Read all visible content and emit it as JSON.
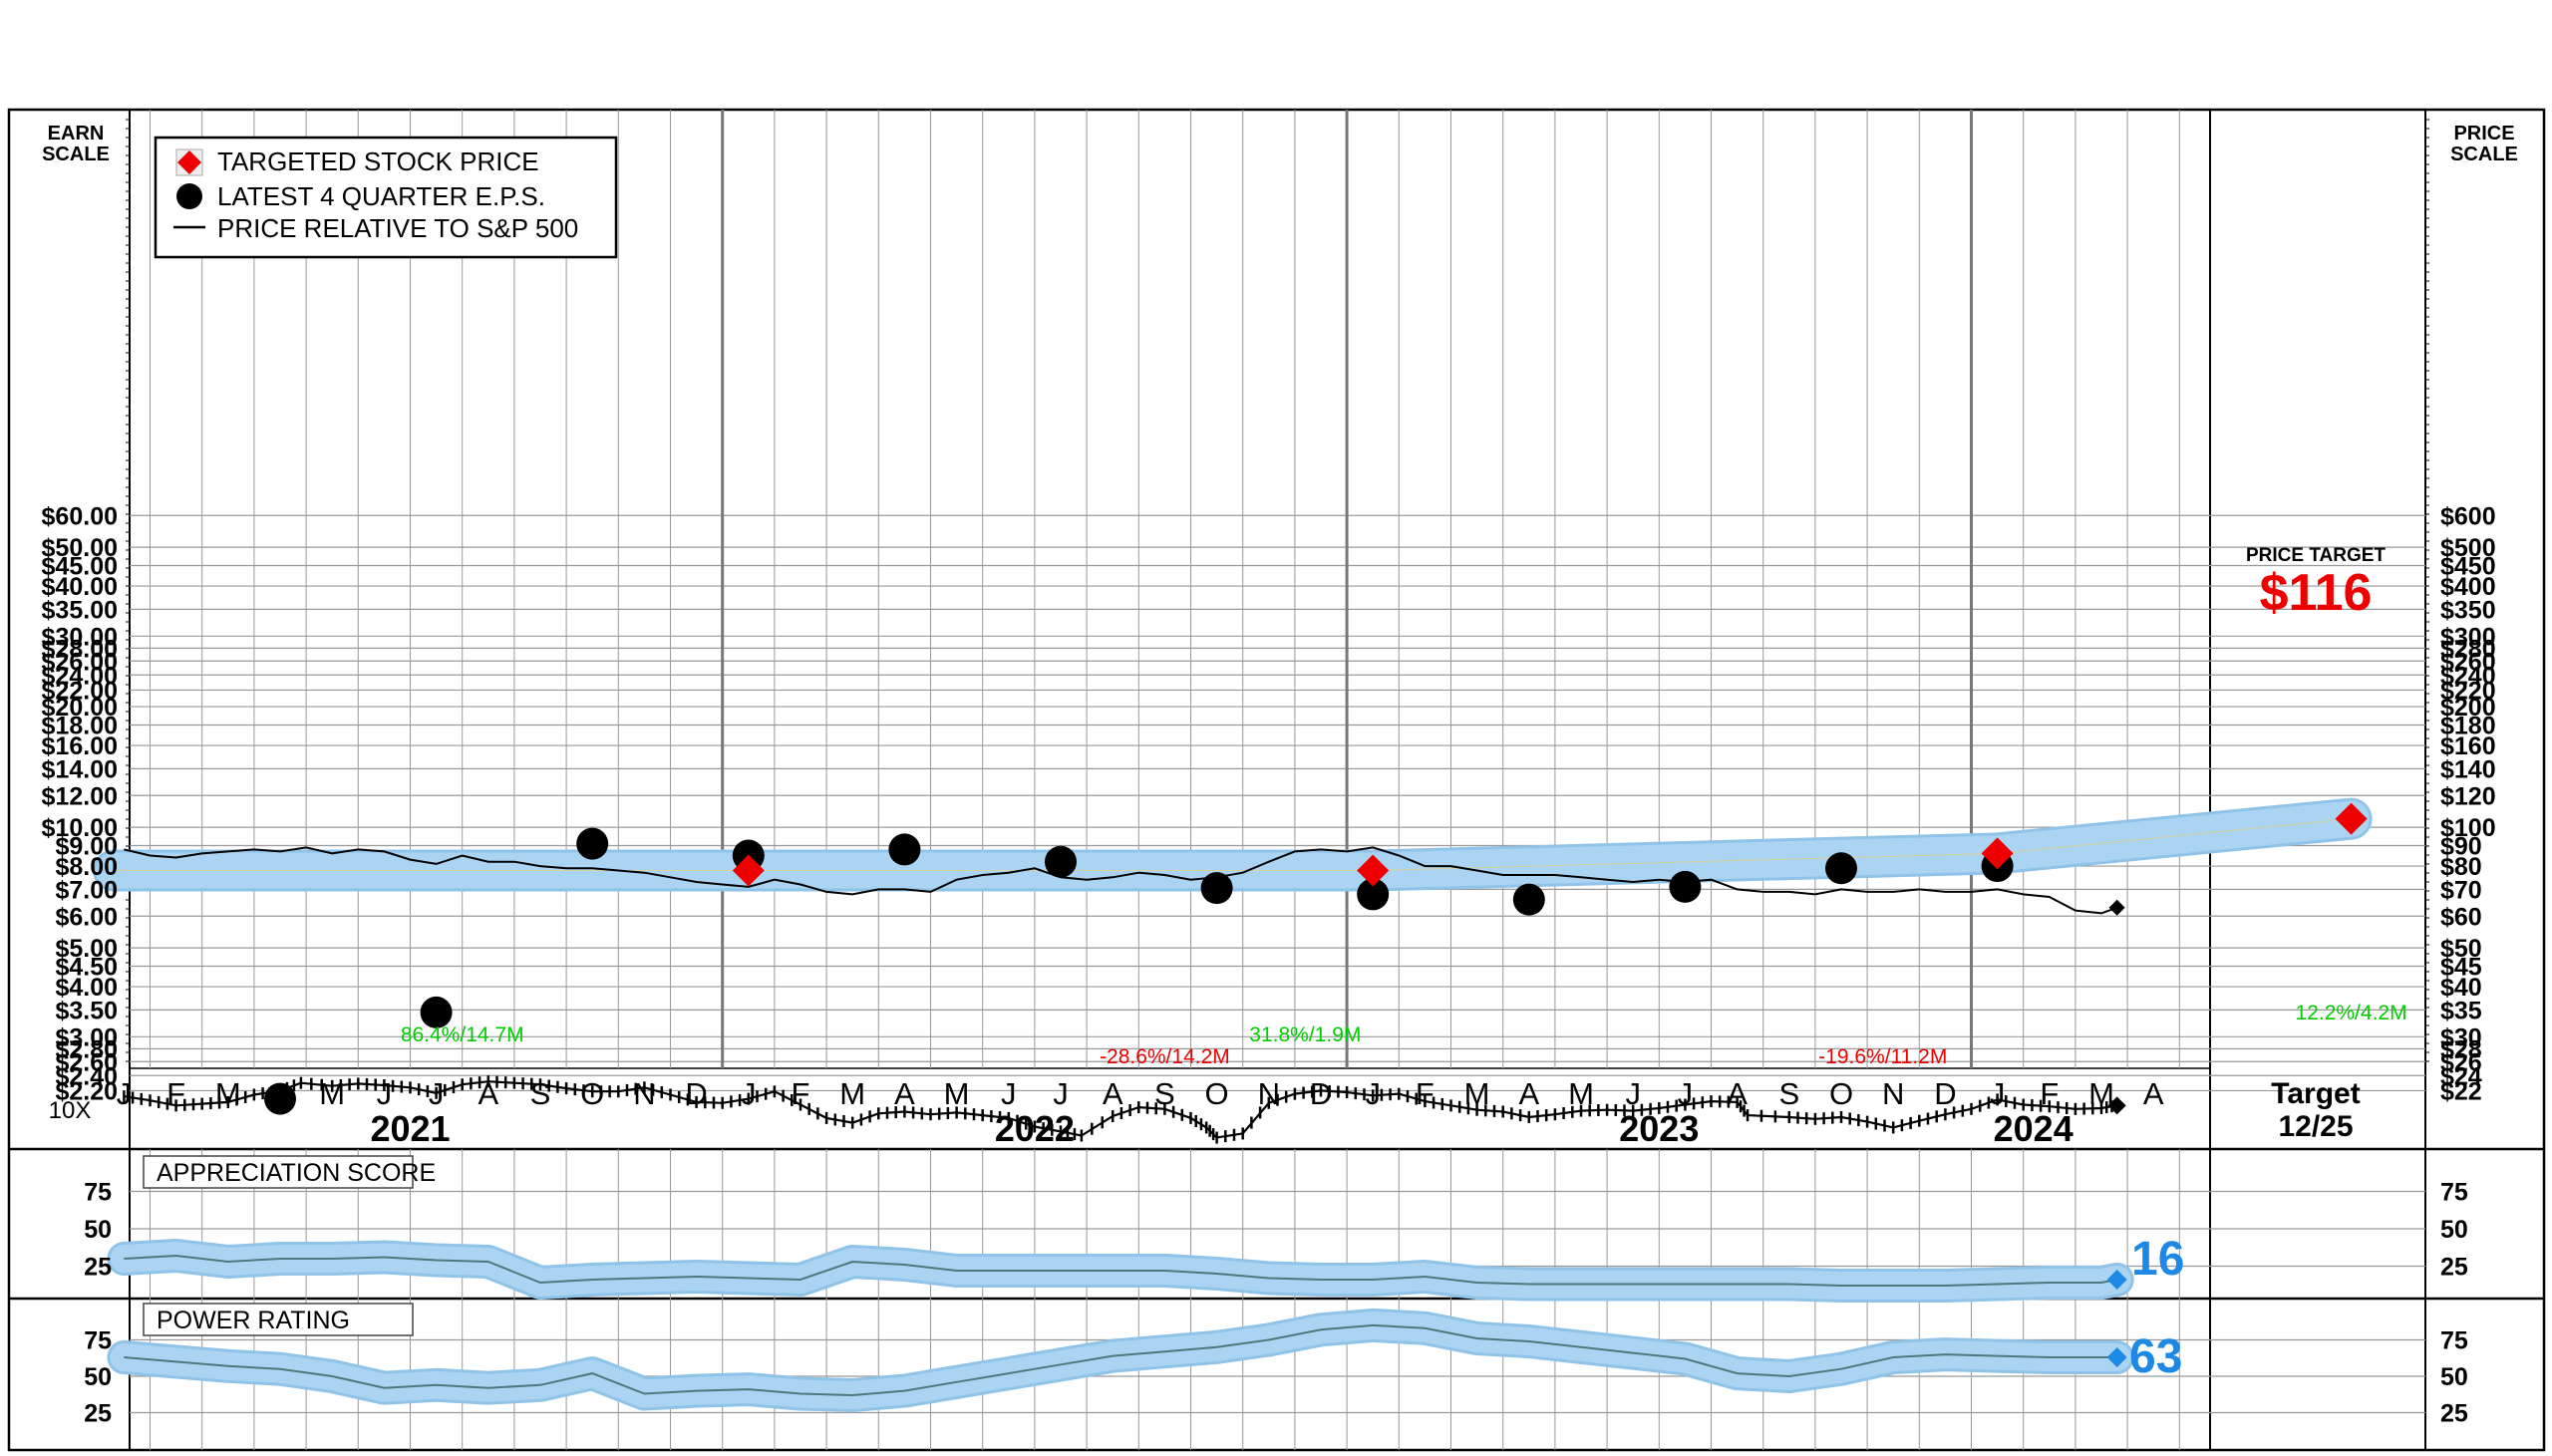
{
  "labels": {
    "earn_scale": [
      "EARN",
      "SCALE"
    ],
    "price_scale": [
      "PRICE",
      "SCALE"
    ],
    "tenx": "10X",
    "price_target_label": "PRICE TARGET",
    "price_target_value": "$116",
    "target_col": [
      "Target",
      "12/25"
    ],
    "appreciation_title": "APPRECIATION SCORE",
    "appreciation_value": "16",
    "power_title": "POWER RATING",
    "power_value": "63"
  },
  "legend": [
    {
      "key": "target",
      "label": "TARGETED STOCK PRICE"
    },
    {
      "key": "eps",
      "label": "LATEST 4 QUARTER E.P.S."
    },
    {
      "key": "rel",
      "label": "PRICE RELATIVE TO S&P 500"
    }
  ],
  "colors": {
    "band": "#aad4f2",
    "band_edge": "#8fc3e8",
    "target": "#ee0000",
    "eps": "#000000",
    "green_note": "#00cc00",
    "red_note": "#ee0000",
    "score_value": "#1e88e5",
    "grid": "#999999"
  },
  "chart_data": [
    {
      "type": "line",
      "title": "",
      "y_scale": "log",
      "earn_scale_ticks": [
        "$60.00",
        "$50.00",
        "$45.00",
        "$40.00",
        "$35.00",
        "$30.00",
        "$28.00",
        "$26.00",
        "$24.00",
        "$22.00",
        "$20.00",
        "$18.00",
        "$16.00",
        "$14.00",
        "$12.00",
        "$10.00",
        "$9.00",
        "$8.00",
        "$7.00",
        "$6.00",
        "$5.00",
        "$4.50",
        "$4.00",
        "$3.50",
        "$3.00",
        "$2.80",
        "$2.60",
        "$2.40",
        "$2.20"
      ],
      "price_scale_ticks": [
        "$600",
        "$500",
        "$450",
        "$400",
        "$350",
        "$300",
        "$280",
        "$260",
        "$240",
        "$220",
        "$200",
        "$180",
        "$160",
        "$140",
        "$120",
        "$100",
        "$90",
        "$80",
        "$70",
        "$60",
        "$50",
        "$45",
        "$40",
        "$35",
        "$30",
        "$28",
        "$26",
        "$24",
        "$22"
      ],
      "month_labels": [
        "J",
        "F",
        "M",
        "A",
        "M",
        "J",
        "J",
        "A",
        "S",
        "O",
        "N",
        "D",
        "J",
        "F",
        "M",
        "A",
        "M",
        "J",
        "J",
        "A",
        "S",
        "O",
        "N",
        "D",
        "J",
        "F",
        "M",
        "A",
        "M",
        "J",
        "J",
        "A",
        "S",
        "O",
        "N",
        "D",
        "J",
        "F",
        "M",
        "A"
      ],
      "year_labels": [
        {
          "year": "2021",
          "month_index": 6
        },
        {
          "year": "2022",
          "month_index": 18
        },
        {
          "year": "2023",
          "month_index": 30
        },
        {
          "year": "2024",
          "month_index": 37
        }
      ],
      "series": [
        {
          "name": "TARGETED STOCK PRICE",
          "points": [
            [
              12,
              7.8
            ],
            [
              24,
              7.8
            ],
            [
              36,
              8.6
            ],
            [
              42.8,
              10.5
            ]
          ],
          "band_y": [
            [
              -0.2,
              7.8
            ],
            [
              12,
              7.8
            ],
            [
              24,
              7.8
            ],
            [
              36,
              8.6
            ],
            [
              42.8,
              10.5
            ]
          ]
        },
        {
          "name": "LATEST 4 QUARTER E.P.S.",
          "points": [
            [
              3,
              2.1
            ],
            [
              6,
              3.45
            ],
            [
              9,
              9.1
            ],
            [
              12,
              8.5
            ],
            [
              15,
              8.8
            ],
            [
              18,
              8.2
            ],
            [
              21,
              7.05
            ],
            [
              24,
              6.8
            ],
            [
              27,
              6.6
            ],
            [
              30,
              7.1
            ],
            [
              33,
              7.9
            ],
            [
              36,
              8.0
            ]
          ]
        },
        {
          "name": "STOCK PRICE",
          "points": [
            [
              0,
              21.3
            ],
            [
              0.5,
              20.8
            ],
            [
              1,
              20.2
            ],
            [
              1.5,
              20.4
            ],
            [
              2,
              20.6
            ],
            [
              2.5,
              21.5
            ],
            [
              3,
              22.0
            ],
            [
              3.4,
              23.0
            ],
            [
              4,
              22.6
            ],
            [
              4.5,
              22.9
            ],
            [
              5,
              22.7
            ],
            [
              5.5,
              22.4
            ],
            [
              6,
              21.7
            ],
            [
              6.5,
              22.8
            ],
            [
              7,
              23.2
            ],
            [
              7.5,
              23.0
            ],
            [
              8,
              22.8
            ],
            [
              8.5,
              22.3
            ],
            [
              9,
              21.9
            ],
            [
              9.5,
              21.9
            ],
            [
              10,
              22.4
            ],
            [
              10.5,
              21.5
            ],
            [
              11,
              20.6
            ],
            [
              11.5,
              20.5
            ],
            [
              12,
              21.0
            ],
            [
              12.5,
              21.9
            ],
            [
              13,
              20.3
            ],
            [
              13.5,
              18.8
            ],
            [
              14,
              18.3
            ],
            [
              14.5,
              19.3
            ],
            [
              15,
              19.5
            ],
            [
              15.5,
              19.2
            ],
            [
              16,
              19.4
            ],
            [
              16.5,
              19.1
            ],
            [
              17,
              18.8
            ],
            [
              17.5,
              17.9
            ],
            [
              18,
              17.4
            ],
            [
              18.4,
              17.0
            ],
            [
              19,
              19.0
            ],
            [
              19.5,
              20.0
            ],
            [
              20,
              19.8
            ],
            [
              20.5,
              18.8
            ],
            [
              20.8,
              17.8
            ],
            [
              21,
              16.8
            ],
            [
              21.5,
              17.2
            ],
            [
              22,
              20.5
            ],
            [
              22.5,
              21.6
            ],
            [
              23,
              22.0
            ],
            [
              23.5,
              21.8
            ],
            [
              24,
              21.4
            ],
            [
              24.5,
              21.6
            ],
            [
              25,
              20.7
            ],
            [
              25.5,
              20.2
            ],
            [
              26,
              19.7
            ],
            [
              26.5,
              19.5
            ],
            [
              27,
              18.9
            ],
            [
              27.5,
              19.2
            ],
            [
              28,
              19.6
            ],
            [
              28.5,
              19.7
            ],
            [
              29,
              19.6
            ],
            [
              29.5,
              19.9
            ],
            [
              30,
              20.3
            ],
            [
              30.5,
              20.7
            ],
            [
              31,
              20.6
            ],
            [
              31.2,
              19.1
            ],
            [
              32,
              18.9
            ],
            [
              32.5,
              18.7
            ],
            [
              33,
              18.9
            ],
            [
              33.5,
              18.4
            ],
            [
              34,
              17.8
            ],
            [
              34.5,
              18.5
            ],
            [
              35,
              19.2
            ],
            [
              35.5,
              19.8
            ],
            [
              36,
              20.9
            ],
            [
              36.5,
              20.3
            ],
            [
              37,
              20.1
            ],
            [
              37.5,
              19.8
            ],
            [
              38,
              19.9
            ],
            [
              38.3,
              20.2
            ]
          ],
          "end_marker": [
            38.3,
            20.2
          ]
        },
        {
          "name": "PRICE RELATIVE TO S&P 500",
          "points": [
            [
              0,
              8.8
            ],
            [
              0.5,
              8.5
            ],
            [
              1,
              8.4
            ],
            [
              1.5,
              8.6
            ],
            [
              2,
              8.7
            ],
            [
              2.5,
              8.8
            ],
            [
              3,
              8.7
            ],
            [
              3.5,
              8.9
            ],
            [
              4,
              8.6
            ],
            [
              4.5,
              8.8
            ],
            [
              5,
              8.7
            ],
            [
              5.5,
              8.3
            ],
            [
              6,
              8.1
            ],
            [
              6.5,
              8.5
            ],
            [
              7,
              8.2
            ],
            [
              7.5,
              8.2
            ],
            [
              8,
              8.0
            ],
            [
              8.5,
              7.9
            ],
            [
              9,
              7.9
            ],
            [
              9.5,
              7.8
            ],
            [
              10,
              7.7
            ],
            [
              10.5,
              7.5
            ],
            [
              11,
              7.3
            ],
            [
              11.5,
              7.2
            ],
            [
              12,
              7.1
            ],
            [
              12.5,
              7.4
            ],
            [
              13,
              7.2
            ],
            [
              13.5,
              6.9
            ],
            [
              14,
              6.8
            ],
            [
              14.5,
              7.0
            ],
            [
              15,
              7.0
            ],
            [
              15.5,
              6.9
            ],
            [
              16,
              7.4
            ],
            [
              16.5,
              7.6
            ],
            [
              17,
              7.7
            ],
            [
              17.5,
              7.9
            ],
            [
              18,
              7.5
            ],
            [
              18.5,
              7.4
            ],
            [
              19,
              7.5
            ],
            [
              19.5,
              7.7
            ],
            [
              20,
              7.6
            ],
            [
              20.5,
              7.4
            ],
            [
              21,
              7.5
            ],
            [
              21.5,
              7.7
            ],
            [
              22,
              8.2
            ],
            [
              22.5,
              8.7
            ],
            [
              23,
              8.8
            ],
            [
              23.5,
              8.7
            ],
            [
              24,
              8.9
            ],
            [
              24.5,
              8.5
            ],
            [
              25,
              8.0
            ],
            [
              25.5,
              8.0
            ],
            [
              26,
              7.8
            ],
            [
              26.5,
              7.6
            ],
            [
              27,
              7.6
            ],
            [
              27.5,
              7.6
            ],
            [
              28,
              7.5
            ],
            [
              28.5,
              7.4
            ],
            [
              29,
              7.3
            ],
            [
              29.5,
              7.4
            ],
            [
              30,
              7.3
            ],
            [
              30.5,
              7.4
            ],
            [
              31,
              7.0
            ],
            [
              31.5,
              6.9
            ],
            [
              32,
              6.9
            ],
            [
              32.5,
              6.8
            ],
            [
              33,
              7.0
            ],
            [
              33.5,
              6.9
            ],
            [
              34,
              6.9
            ],
            [
              34.5,
              7.0
            ],
            [
              35,
              6.9
            ],
            [
              35.5,
              6.9
            ],
            [
              36,
              7.0
            ],
            [
              36.5,
              6.8
            ],
            [
              37,
              6.7
            ],
            [
              37.5,
              6.2
            ],
            [
              38,
              6.1
            ],
            [
              38.3,
              6.3
            ]
          ],
          "end_marker": [
            38.3,
            6.3
          ]
        }
      ],
      "annotations": [
        {
          "text": "86.4%/14.7M",
          "x": 6.5,
          "color": "green"
        },
        {
          "text": "-28.6%/14.2M",
          "x": 20.0,
          "color": "red"
        },
        {
          "text": "31.8%/1.9M",
          "x": 22.7,
          "color": "green"
        },
        {
          "text": "-19.6%/11.2M",
          "x": 33.8,
          "color": "red"
        },
        {
          "text": "12.2%/4.2M",
          "x": 42.8,
          "color": "green"
        }
      ]
    },
    {
      "type": "area",
      "title": "APPRECIATION SCORE",
      "y_ticks": [
        75,
        50,
        25
      ],
      "ylim": [
        0,
        100
      ],
      "x": [
        0,
        1,
        2,
        3,
        4,
        5,
        6,
        7,
        8,
        9,
        10,
        11,
        12,
        13,
        14,
        15,
        16,
        17,
        18,
        19,
        20,
        21,
        22,
        23,
        24,
        25,
        26,
        27,
        28,
        29,
        30,
        31,
        32,
        33,
        34,
        35,
        36,
        37,
        38,
        38.3
      ],
      "values": [
        30,
        32,
        28,
        30,
        30,
        31,
        29,
        28,
        14,
        16,
        17,
        18,
        17,
        16,
        28,
        26,
        22,
        22,
        22,
        22,
        22,
        20,
        17,
        16,
        16,
        18,
        14,
        13,
        13,
        13,
        13,
        13,
        13,
        12,
        12,
        12,
        13,
        14,
        14,
        16
      ],
      "end_value": 16
    },
    {
      "type": "area",
      "title": "POWER RATING",
      "y_ticks": [
        75,
        50,
        25
      ],
      "ylim": [
        0,
        100
      ],
      "x": [
        0,
        1,
        2,
        3,
        4,
        5,
        6,
        7,
        8,
        9,
        10,
        11,
        12,
        13,
        14,
        15,
        16,
        17,
        18,
        19,
        20,
        21,
        22,
        23,
        24,
        25,
        26,
        27,
        28,
        29,
        30,
        31,
        32,
        33,
        34,
        35,
        36,
        37,
        38,
        38.3
      ],
      "values": [
        63,
        60,
        57,
        55,
        50,
        42,
        44,
        42,
        44,
        52,
        38,
        40,
        41,
        38,
        37,
        40,
        46,
        52,
        58,
        64,
        67,
        70,
        75,
        82,
        85,
        83,
        76,
        74,
        70,
        66,
        62,
        52,
        50,
        55,
        63,
        65,
        64,
        63,
        63,
        63
      ],
      "end_value": 63
    }
  ]
}
